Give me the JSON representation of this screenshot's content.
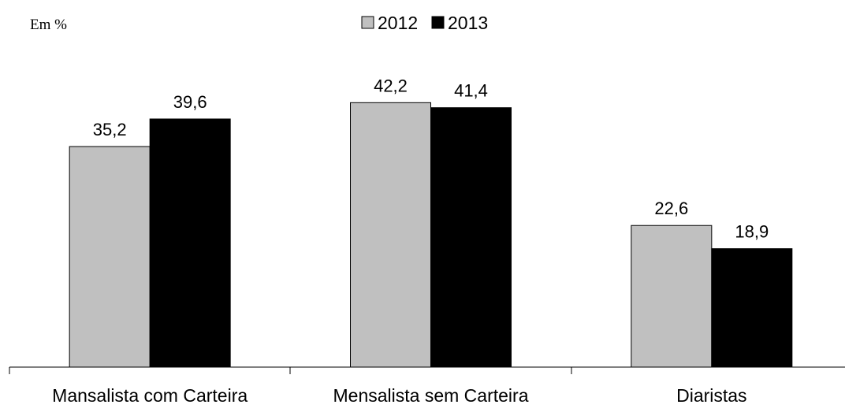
{
  "chart_data": {
    "type": "bar",
    "unit_label": "Em %",
    "categories": [
      "Mansalista com Carteira",
      "Mensalista sem Carteira",
      "Diaristas"
    ],
    "series": [
      {
        "name": "2012",
        "values": [
          35.2,
          42.2,
          22.6
        ],
        "labels": [
          "35,2",
          "42,2",
          "22,6"
        ],
        "color": "#c0c0c0"
      },
      {
        "name": "2013",
        "values": [
          39.6,
          41.4,
          18.9
        ],
        "labels": [
          "39,6",
          "41,4",
          "18,9"
        ],
        "color": "#000000"
      }
    ],
    "legend_position": "top-center",
    "ylim": [
      0,
      50
    ],
    "grid": false
  }
}
